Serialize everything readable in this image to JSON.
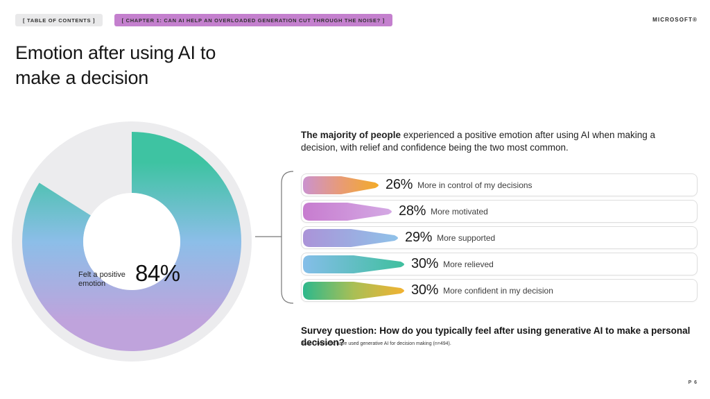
{
  "header": {
    "toc_label": "[  TABLE OF CONTENTS  ]",
    "chapter_label": "[   CHAPTER 1: CAN AI HELP AN OVERLOADED GENERATION CUT THROUGH THE NOISE?   ]",
    "brand": "MICROSOFT®",
    "chapter_pill_bg": "#c480ce",
    "toc_pill_bg": "#e9e9ea"
  },
  "page": {
    "title_line1": "Emotion after using AI to",
    "title_line2": "make a decision",
    "page_number": "P 6"
  },
  "summary": {
    "lead_bold": "The majority of people",
    "lead_rest": " experienced a positive emotion after using AI when making a decision, with relief and confidence being the two most common."
  },
  "survey": {
    "question": "Survey question: How do you typically feel after using generative AI to make a personal decision?",
    "base_note": "Base: Total who have used generative AI for decision making (n=494)."
  },
  "chart_data": [
    {
      "type": "pie",
      "subtype": "donut",
      "title": "Emotion after using AI to make a decision",
      "labels": [
        "Felt a positive emotion",
        "Remainder"
      ],
      "values": [
        84,
        16
      ],
      "center_label": "84%",
      "slice_label_line1": "Felt a positive",
      "slice_label_line2": "emotion",
      "gradient": [
        "#3ec3a2",
        "#8cbee8",
        "#bfa3dc"
      ],
      "track_color": "#ececee",
      "hole_color": "#ffffff",
      "start_angle_deg": 0,
      "direction": "clockwise"
    },
    {
      "type": "bar",
      "orientation": "horizontal",
      "categories": [
        "More in control of my decisions",
        "More motivated",
        "More supported",
        "More relieved",
        "More confident in my decision"
      ],
      "values": [
        26,
        28,
        29,
        30,
        30
      ],
      "value_suffix": "%",
      "xlim": [
        0,
        100
      ],
      "grid": false,
      "legend": false,
      "bar_gradients": [
        [
          "#cb92cf",
          "#e89b76",
          "#f3ab28"
        ],
        [
          "#c77ccf",
          "#d4a9e4"
        ],
        [
          "#ab93d8",
          "#8fc2e9"
        ],
        [
          "#85bee9",
          "#3fbf9e"
        ],
        [
          "#2db88c",
          "#a9bf55",
          "#f2b231"
        ]
      ]
    }
  ]
}
